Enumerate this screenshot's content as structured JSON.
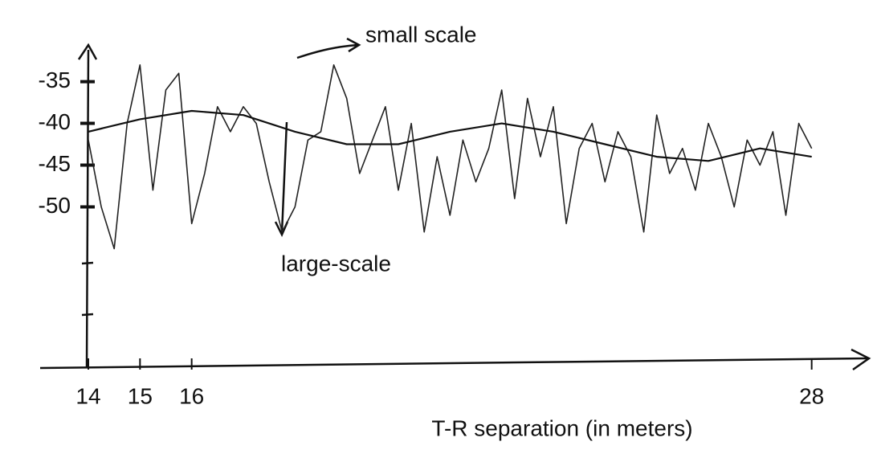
{
  "chart_data": {
    "type": "line",
    "x_label": "T-R separation (in meters)",
    "annotations": [
      "small scale",
      "large-scale"
    ],
    "series": [
      {
        "name": "small scale",
        "color": "#222222",
        "x": [
          14,
          14.25,
          14.5,
          14.75,
          15,
          15.25,
          15.5,
          15.75,
          16,
          16.25,
          16.5,
          16.75,
          17,
          17.25,
          17.5,
          17.75,
          18,
          18.25,
          18.5,
          18.75,
          19,
          19.25,
          19.5,
          19.75,
          20,
          20.25,
          20.5,
          20.75,
          21,
          21.25,
          21.5,
          21.75,
          22,
          22.25,
          22.5,
          22.75,
          23,
          23.25,
          23.5,
          23.75,
          24,
          24.25,
          24.5,
          24.75,
          25,
          25.25,
          25.5,
          25.75,
          26,
          26.25,
          26.5,
          26.75,
          27,
          27.25,
          27.5,
          27.75,
          28
        ],
        "values": [
          -42,
          -50,
          -55,
          -40,
          -33,
          -48,
          -36,
          -34,
          -52,
          -46,
          -38,
          -41,
          -38,
          -40,
          -47,
          -53,
          -50,
          -42,
          -41,
          -33,
          -37,
          -46,
          -42,
          -38,
          -48,
          -40,
          -53,
          -44,
          -51,
          -42,
          -47,
          -43,
          -36,
          -49,
          -37,
          -44,
          -38,
          -52,
          -43,
          -40,
          -47,
          -41,
          -44,
          -53,
          -39,
          -46,
          -43,
          -48,
          -40,
          -44,
          -50,
          -42,
          -45,
          -41,
          -51,
          -40,
          -43
        ]
      },
      {
        "name": "large-scale",
        "color": "#111111",
        "x": [
          14,
          15,
          16,
          17,
          18,
          19,
          20,
          21,
          22,
          23,
          24,
          25,
          26,
          27,
          28
        ],
        "values": [
          -41,
          -39.5,
          -38.5,
          -39,
          -41,
          -42.5,
          -42.5,
          -41,
          -40,
          -41,
          -42.5,
          -44,
          -44.5,
          -43,
          -44
        ]
      }
    ],
    "xlim": [
      14,
      29
    ],
    "xticks": [
      14,
      15,
      16,
      28
    ],
    "ylim": [
      -69,
      -31
    ],
    "yticks": [
      -35,
      -40,
      -45,
      -50
    ]
  }
}
